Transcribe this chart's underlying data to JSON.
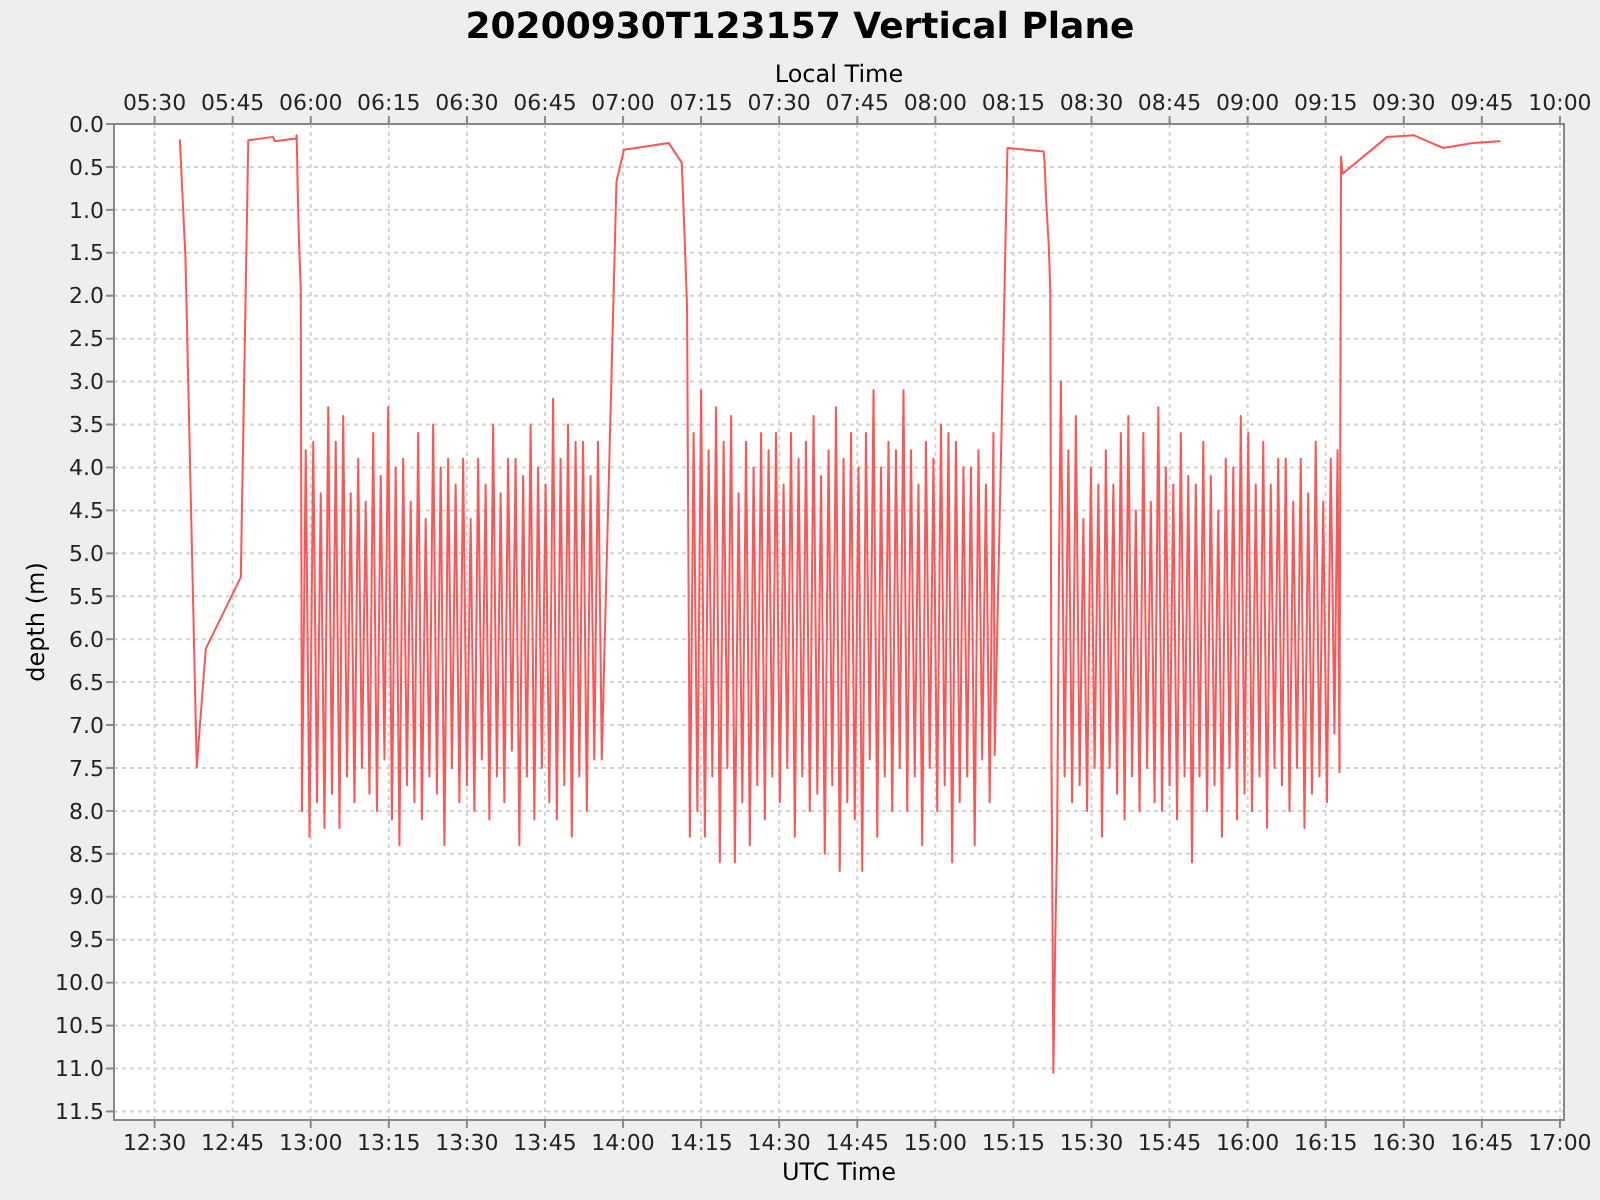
{
  "chart_data": {
    "type": "line",
    "title": "20200930T123157 Vertical Plane",
    "xlabel": "UTC Time",
    "x2label": "Local Time",
    "ylabel": "depth (m)",
    "x": [
      12.581,
      12.599,
      12.635,
      12.664,
      12.776,
      12.8,
      12.879,
      12.885,
      12.953,
      12.955,
      12.958,
      12.962,
      12.968,
      12.972,
      12.984,
      12.996,
      13.008,
      13.02,
      13.032,
      13.044,
      13.056,
      13.068,
      13.08,
      13.092,
      13.104,
      13.116,
      13.128,
      13.14,
      13.152,
      13.164,
      13.176,
      13.188,
      13.2,
      13.212,
      13.224,
      13.236,
      13.248,
      13.26,
      13.272,
      13.284,
      13.296,
      13.308,
      13.32,
      13.332,
      13.344,
      13.356,
      13.368,
      13.38,
      13.392,
      13.404,
      13.416,
      13.428,
      13.44,
      13.452,
      13.464,
      13.476,
      13.488,
      13.5,
      13.512,
      13.524,
      13.536,
      13.548,
      13.56,
      13.572,
      13.584,
      13.596,
      13.608,
      13.62,
      13.632,
      13.644,
      13.656,
      13.668,
      13.68,
      13.692,
      13.704,
      13.716,
      13.728,
      13.74,
      13.752,
      13.764,
      13.776,
      13.788,
      13.8,
      13.812,
      13.824,
      13.836,
      13.848,
      13.86,
      13.872,
      13.884,
      13.896,
      13.908,
      13.92,
      13.932,
      13.94,
      13.979,
      14.003,
      14.146,
      14.188,
      14.197,
      14.205,
      14.214,
      14.226,
      14.238,
      14.25,
      14.262,
      14.274,
      14.286,
      14.298,
      14.31,
      14.322,
      14.334,
      14.346,
      14.358,
      14.37,
      14.382,
      14.394,
      14.406,
      14.418,
      14.43,
      14.442,
      14.454,
      14.466,
      14.478,
      14.49,
      14.502,
      14.514,
      14.526,
      14.538,
      14.55,
      14.562,
      14.574,
      14.586,
      14.598,
      14.61,
      14.622,
      14.634,
      14.646,
      14.658,
      14.67,
      14.682,
      14.694,
      14.706,
      14.718,
      14.73,
      14.742,
      14.754,
      14.766,
      14.778,
      14.79,
      14.802,
      14.814,
      14.826,
      14.838,
      14.85,
      14.862,
      14.874,
      14.886,
      14.898,
      14.91,
      14.922,
      14.934,
      14.946,
      14.958,
      14.97,
      14.982,
      14.994,
      15.006,
      15.018,
      15.03,
      15.042,
      15.054,
      15.066,
      15.078,
      15.09,
      15.102,
      15.114,
      15.126,
      15.138,
      15.15,
      15.162,
      15.174,
      15.186,
      15.19,
      15.231,
      15.347,
      15.35,
      15.355,
      15.363,
      15.368,
      15.372,
      15.378,
      15.384,
      15.39,
      15.396,
      15.402,
      15.414,
      15.426,
      15.438,
      15.45,
      15.462,
      15.474,
      15.486,
      15.498,
      15.51,
      15.522,
      15.534,
      15.546,
      15.558,
      15.57,
      15.582,
      15.594,
      15.606,
      15.618,
      15.63,
      15.642,
      15.654,
      15.666,
      15.678,
      15.69,
      15.702,
      15.714,
      15.726,
      15.738,
      15.75,
      15.762,
      15.774,
      15.786,
      15.798,
      15.81,
      15.822,
      15.834,
      15.846,
      15.858,
      15.87,
      15.882,
      15.894,
      15.906,
      15.918,
      15.93,
      15.942,
      15.954,
      15.966,
      15.978,
      15.99,
      16.002,
      16.014,
      16.026,
      16.038,
      16.05,
      16.062,
      16.074,
      16.086,
      16.098,
      16.11,
      16.122,
      16.134,
      16.146,
      16.158,
      16.17,
      16.182,
      16.194,
      16.206,
      16.218,
      16.23,
      16.242,
      16.254,
      16.266,
      16.278,
      16.288,
      16.294,
      16.299,
      16.304,
      16.447,
      16.531,
      16.626,
      16.721,
      16.807
    ],
    "series": [
      {
        "color": "#ff5555",
        "values": [
          0.19,
          1.57,
          7.49,
          6.11,
          5.28,
          0.19,
          0.15,
          0.2,
          0.17,
          0.13,
          0.71,
          1.33,
          1.92,
          8.0,
          3.8,
          8.3,
          3.7,
          7.9,
          4.3,
          8.2,
          3.3,
          7.8,
          3.7,
          8.2,
          3.4,
          7.6,
          4.3,
          7.9,
          3.9,
          7.5,
          4.4,
          7.8,
          3.6,
          8.0,
          4.1,
          7.4,
          3.3,
          8.1,
          4.0,
          8.4,
          3.9,
          7.7,
          4.4,
          7.9,
          3.6,
          8.1,
          4.6,
          7.6,
          3.5,
          7.8,
          4.0,
          8.4,
          3.9,
          7.5,
          4.2,
          7.9,
          3.9,
          7.7,
          4.6,
          8.0,
          3.9,
          7.4,
          4.2,
          8.1,
          3.5,
          7.6,
          4.3,
          7.9,
          3.9,
          7.3,
          3.9,
          8.4,
          4.1,
          7.6,
          3.5,
          8.1,
          4.0,
          7.5,
          4.2,
          7.9,
          3.2,
          8.1,
          3.9,
          7.7,
          3.5,
          8.3,
          3.7,
          7.6,
          3.7,
          8.0,
          4.1,
          7.4,
          3.7,
          7.4,
          6.2,
          0.67,
          0.3,
          0.22,
          0.45,
          1.3,
          2.13,
          8.3,
          3.6,
          8.0,
          3.1,
          8.3,
          3.8,
          7.6,
          3.3,
          8.6,
          3.7,
          7.5,
          3.4,
          8.6,
          4.3,
          7.9,
          3.7,
          8.4,
          4.0,
          7.7,
          3.6,
          8.1,
          3.8,
          7.6,
          3.6,
          7.9,
          4.2,
          7.5,
          3.6,
          8.3,
          3.9,
          7.6,
          3.7,
          8.0,
          3.4,
          7.8,
          4.1,
          8.5,
          3.8,
          7.7,
          3.3,
          8.7,
          3.9,
          7.9,
          3.6,
          8.1,
          4.0,
          8.7,
          3.6,
          7.4,
          3.1,
          8.3,
          4.0,
          7.6,
          3.7,
          8.0,
          3.8,
          7.5,
          3.1,
          8.0,
          3.8,
          7.6,
          4.2,
          8.4,
          3.7,
          7.5,
          3.9,
          8.0,
          3.5,
          7.7,
          3.6,
          8.6,
          3.7,
          7.9,
          4.0,
          7.6,
          4.0,
          8.4,
          3.8,
          7.4,
          4.2,
          7.9,
          3.6,
          7.35,
          0.28,
          0.32,
          0.45,
          0.9,
          1.4,
          1.92,
          7.4,
          11.05,
          9.5,
          8.3,
          5.1,
          3.0,
          7.6,
          3.8,
          7.9,
          3.4,
          7.7,
          4.6,
          8.0,
          4.0,
          7.5,
          4.2,
          8.3,
          3.8,
          7.5,
          4.2,
          7.8,
          3.6,
          8.1,
          3.4,
          7.6,
          4.5,
          8.0,
          3.6,
          7.5,
          4.4,
          7.9,
          3.3,
          8.0,
          4.0,
          7.7,
          4.2,
          8.1,
          3.6,
          7.6,
          4.1,
          8.6,
          4.2,
          7.6,
          3.7,
          8.0,
          4.1,
          7.7,
          4.5,
          8.3,
          3.9,
          7.5,
          4.0,
          8.1,
          3.4,
          7.8,
          3.6,
          8.0,
          4.2,
          7.6,
          3.7,
          8.2,
          4.2,
          7.5,
          3.9,
          7.7,
          3.9,
          8.0,
          4.4,
          7.5,
          3.9,
          8.2,
          4.3,
          7.8,
          3.7,
          7.6,
          4.4,
          7.9,
          3.9,
          7.1,
          3.8,
          7.55,
          0.38,
          0.58,
          0.15,
          0.13,
          0.28,
          0.22,
          0.2
        ]
      }
    ],
    "xlim": [
      12.37,
      17.013
    ],
    "xticks": [
      {
        "value": 12.5,
        "label": "12:30"
      },
      {
        "value": 12.75,
        "label": "12:45"
      },
      {
        "value": 13,
        "label": "13:00"
      },
      {
        "value": 13.25,
        "label": "13:15"
      },
      {
        "value": 13.5,
        "label": "13:30"
      },
      {
        "value": 13.75,
        "label": "13:45"
      },
      {
        "value": 14,
        "label": "14:00"
      },
      {
        "value": 14.25,
        "label": "14:15"
      },
      {
        "value": 14.5,
        "label": "14:30"
      },
      {
        "value": 14.75,
        "label": "14:45"
      },
      {
        "value": 15,
        "label": "15:00"
      },
      {
        "value": 15.25,
        "label": "15:15"
      },
      {
        "value": 15.5,
        "label": "15:30"
      },
      {
        "value": 15.75,
        "label": "15:45"
      },
      {
        "value": 16,
        "label": "16:00"
      },
      {
        "value": 16.25,
        "label": "16:15"
      },
      {
        "value": 16.5,
        "label": "16:30"
      },
      {
        "value": 16.75,
        "label": "16:45"
      },
      {
        "value": 17,
        "label": "17:00"
      }
    ],
    "x2lim": [
      5.37,
      10.013
    ],
    "x2ticks": [
      {
        "value": 5.5,
        "label": "05:30"
      },
      {
        "value": 5.75,
        "label": "05:45"
      },
      {
        "value": 6,
        "label": "06:00"
      },
      {
        "value": 6.25,
        "label": "06:15"
      },
      {
        "value": 6.5,
        "label": "06:30"
      },
      {
        "value": 6.75,
        "label": "06:45"
      },
      {
        "value": 7,
        "label": "07:00"
      },
      {
        "value": 7.25,
        "label": "07:15"
      },
      {
        "value": 7.5,
        "label": "07:30"
      },
      {
        "value": 7.75,
        "label": "07:45"
      },
      {
        "value": 8,
        "label": "08:00"
      },
      {
        "value": 8.25,
        "label": "08:15"
      },
      {
        "value": 8.5,
        "label": "08:30"
      },
      {
        "value": 8.75,
        "label": "08:45"
      },
      {
        "value": 9,
        "label": "09:00"
      },
      {
        "value": 9.25,
        "label": "09:15"
      },
      {
        "value": 9.5,
        "label": "09:30"
      },
      {
        "value": 9.75,
        "label": "09:45"
      },
      {
        "value": 10,
        "label": "10:00"
      }
    ],
    "ylim": [
      11.6,
      0
    ],
    "yticks": [
      {
        "value": 0,
        "label": "0.0"
      },
      0.5,
      {
        "value": 1,
        "label": "1.0"
      },
      1.5,
      {
        "value": 2,
        "label": "2.0"
      },
      2.5,
      {
        "value": 3,
        "label": "3.0"
      },
      3.5,
      {
        "value": 4,
        "label": "4.0"
      },
      4.5,
      {
        "value": 5,
        "label": "5.0"
      },
      5.5,
      {
        "value": 6,
        "label": "6.0"
      },
      6.5,
      {
        "value": 7,
        "label": "7.0"
      },
      7.5,
      {
        "value": 8,
        "label": "8.0"
      },
      8.5,
      {
        "value": 9,
        "label": "9.0"
      },
      9.5,
      {
        "value": 10,
        "label": "10.0"
      },
      10.5,
      {
        "value": 11,
        "label": "11.0"
      },
      11.5
    ],
    "grid": true
  }
}
